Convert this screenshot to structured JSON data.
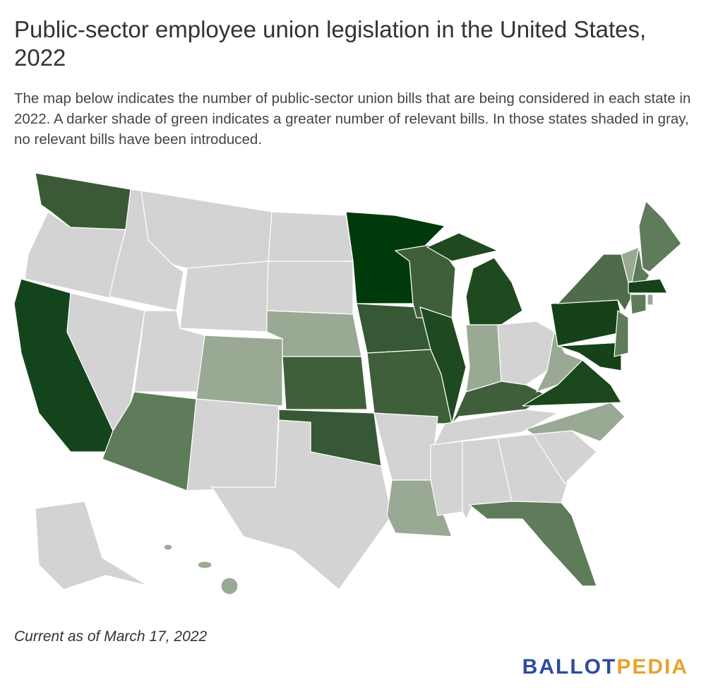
{
  "header": {
    "title": "Public-sector employee union legislation in the United States, 2022",
    "description": "The map below indicates the number of public-sector union bills that are being considered in each state in 2022. A darker shade of green indicates a greater number of relevant bills. In those states shaded in gray, no relevant bills have been introduced."
  },
  "footer": {
    "note": "Current as of March 17, 2022",
    "logo_part1": "BALLOT",
    "logo_part2": "PEDIA"
  }
}
